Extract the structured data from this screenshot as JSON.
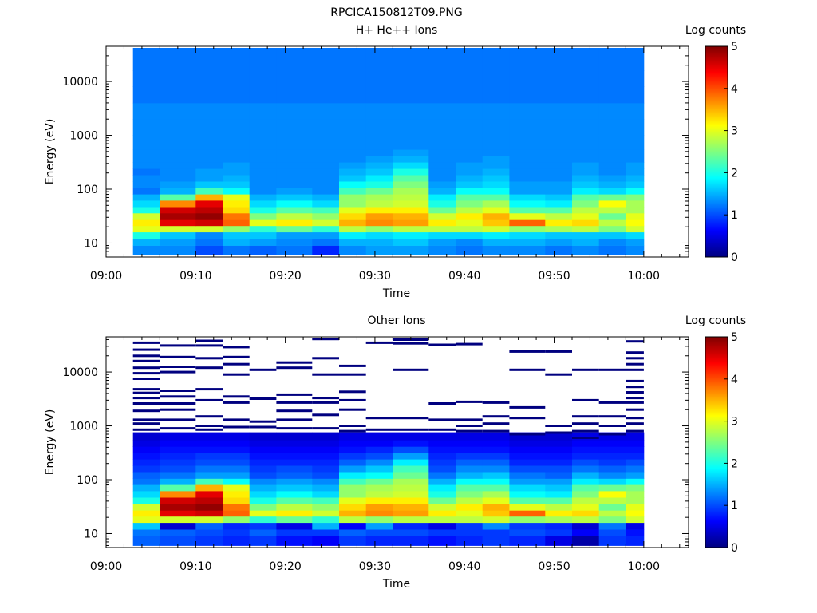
{
  "figure_title": "RPCICA150812T09.PNG",
  "colors": {
    "colormap": "jet",
    "colormap_stops": [
      "#00007f",
      "#0000ff",
      "#007fff",
      "#00ffff",
      "#7fff7f",
      "#ffff00",
      "#ff7f00",
      "#ff0000",
      "#7f0000"
    ],
    "background": "#ffffff",
    "empty_bin": "#ffffff"
  },
  "chart_data": [
    {
      "type": "heatmap",
      "title": "H+ He++ Ions",
      "xlabel": "Time",
      "ylabel": "Energy (eV)",
      "y_scale": "log",
      "ylim": [
        5.5,
        45000
      ],
      "x_ticks": [
        "09:00",
        "09:10",
        "09:20",
        "09:30",
        "09:40",
        "09:50",
        "10:00"
      ],
      "y_ticks": [
        "10",
        "100",
        "1000",
        "10000"
      ],
      "colorbar": {
        "label": "Log counts",
        "min": 0,
        "max": 5,
        "ticks": [
          "0",
          "1",
          "2",
          "3",
          "4",
          "5"
        ]
      },
      "time_bins_start": [
        "09:03",
        "09:06",
        "09:10",
        "09:13",
        "09:16",
        "09:19",
        "09:23",
        "09:26",
        "09:29",
        "09:32",
        "09:36",
        "09:39",
        "09:42",
        "09:45",
        "09:49",
        "09:52",
        "09:55",
        "09:58"
      ],
      "time_end": "10:00",
      "energy_edges_eV": [
        6,
        9,
        12,
        16,
        21,
        27,
        36,
        47,
        62,
        81,
        106,
        140,
        184,
        241,
        317,
        416,
        546,
        1000,
        2000,
        4000,
        8000,
        16000,
        42000
      ],
      "log_counts": [
        [
          1.3,
          1.3,
          1.0,
          1.2,
          1.1,
          1.2,
          0.8,
          1.3,
          1.4,
          1.4,
          1.3,
          1.2,
          1.3,
          1.3,
          1.2,
          1.3,
          1.2,
          1.3
        ],
        [
          1.5,
          1.4,
          1.2,
          1.5,
          1.4,
          1.3,
          1.2,
          1.5,
          1.5,
          1.6,
          1.4,
          1.3,
          1.5,
          1.5,
          1.4,
          1.5,
          1.3,
          1.4
        ],
        [
          2.0,
          1.6,
          1.3,
          1.6,
          1.6,
          1.4,
          1.4,
          1.8,
          1.7,
          1.8,
          1.7,
          1.7,
          1.8,
          1.7,
          1.6,
          1.6,
          1.6,
          1.7
        ],
        [
          3.0,
          2.9,
          2.9,
          2.6,
          2.1,
          2.4,
          2.1,
          2.8,
          2.6,
          2.8,
          2.8,
          2.8,
          2.9,
          2.6,
          2.7,
          2.8,
          2.5,
          2.9
        ],
        [
          3.2,
          4.5,
          4.6,
          3.9,
          3.0,
          3.2,
          2.9,
          3.5,
          3.7,
          3.6,
          3.2,
          3.0,
          3.4,
          3.9,
          3.2,
          3.3,
          2.8,
          3.1
        ],
        [
          2.9,
          4.8,
          4.9,
          3.8,
          2.5,
          2.8,
          2.6,
          3.3,
          3.6,
          3.5,
          2.9,
          3.2,
          3.5,
          3.0,
          2.8,
          3.0,
          2.4,
          3.0
        ],
        [
          2.0,
          4.6,
          4.7,
          3.3,
          2.0,
          2.3,
          2.2,
          3.0,
          3.2,
          3.2,
          2.4,
          2.8,
          3.0,
          2.3,
          2.3,
          2.8,
          2.8,
          2.7
        ],
        [
          1.7,
          3.7,
          4.5,
          3.2,
          1.7,
          1.9,
          1.7,
          2.6,
          2.8,
          2.9,
          2.0,
          2.5,
          2.7,
          1.9,
          1.8,
          2.5,
          3.1,
          2.7
        ],
        [
          1.5,
          2.3,
          3.5,
          3.0,
          1.5,
          1.6,
          1.5,
          2.6,
          2.7,
          2.8,
          1.8,
          2.3,
          2.3,
          1.7,
          1.6,
          2.3,
          2.4,
          2.5
        ],
        [
          1.2,
          1.5,
          2.2,
          1.9,
          1.3,
          1.4,
          1.3,
          2.2,
          2.4,
          2.7,
          1.5,
          1.9,
          1.9,
          1.4,
          1.4,
          1.8,
          1.7,
          1.9
        ],
        [
          1.3,
          1.4,
          1.6,
          1.6,
          1.3,
          1.3,
          1.3,
          1.9,
          2.0,
          2.5,
          1.4,
          1.6,
          1.7,
          1.4,
          1.4,
          1.6,
          1.5,
          1.6
        ],
        [
          1.3,
          1.3,
          1.4,
          1.5,
          1.3,
          1.3,
          1.3,
          1.6,
          1.8,
          2.3,
          1.3,
          1.5,
          1.6,
          1.3,
          1.3,
          1.5,
          1.4,
          1.5
        ],
        [
          1.2,
          1.3,
          1.4,
          1.4,
          1.3,
          1.3,
          1.3,
          1.5,
          1.6,
          2.0,
          1.3,
          1.4,
          1.5,
          1.3,
          1.3,
          1.4,
          1.3,
          1.4
        ],
        [
          1.3,
          1.3,
          1.3,
          1.4,
          1.3,
          1.3,
          1.3,
          1.4,
          1.5,
          1.7,
          1.3,
          1.4,
          1.4,
          1.3,
          1.3,
          1.4,
          1.3,
          1.4
        ],
        [
          1.3,
          1.3,
          1.3,
          1.3,
          1.3,
          1.3,
          1.3,
          1.3,
          1.4,
          1.5,
          1.3,
          1.3,
          1.4,
          1.3,
          1.3,
          1.3,
          1.3,
          1.3
        ],
        [
          1.3,
          1.3,
          1.3,
          1.3,
          1.3,
          1.3,
          1.3,
          1.3,
          1.3,
          1.4,
          1.3,
          1.3,
          1.3,
          1.3,
          1.3,
          1.3,
          1.3,
          1.3
        ],
        [
          1.3,
          1.3,
          1.3,
          1.3,
          1.3,
          1.3,
          1.3,
          1.3,
          1.3,
          1.3,
          1.3,
          1.3,
          1.3,
          1.3,
          1.3,
          1.3,
          1.3,
          1.3
        ],
        [
          1.3,
          1.3,
          1.3,
          1.3,
          1.3,
          1.3,
          1.3,
          1.3,
          1.3,
          1.3,
          1.3,
          1.3,
          1.3,
          1.3,
          1.3,
          1.3,
          1.3,
          1.3
        ],
        [
          1.3,
          1.3,
          1.3,
          1.3,
          1.3,
          1.3,
          1.3,
          1.3,
          1.3,
          1.3,
          1.3,
          1.3,
          1.3,
          1.3,
          1.3,
          1.3,
          1.3,
          1.3
        ],
        [
          1.2,
          1.2,
          1.2,
          1.2,
          1.2,
          1.2,
          1.2,
          1.2,
          1.2,
          1.2,
          1.2,
          1.2,
          1.2,
          1.2,
          1.2,
          1.2,
          1.2,
          1.2
        ],
        [
          1.2,
          1.2,
          1.2,
          1.2,
          1.2,
          1.2,
          1.2,
          1.2,
          1.2,
          1.2,
          1.2,
          1.2,
          1.2,
          1.2,
          1.2,
          1.2,
          1.2,
          1.2
        ],
        [
          1.2,
          1.2,
          1.2,
          1.2,
          1.2,
          1.2,
          1.2,
          1.2,
          1.2,
          1.2,
          1.2,
          1.2,
          1.2,
          1.2,
          1.2,
          1.2,
          1.2,
          1.2
        ]
      ]
    },
    {
      "type": "heatmap",
      "title": "Other Ions",
      "xlabel": "Time",
      "ylabel": "Energy (eV)",
      "y_scale": "log",
      "ylim": [
        5.5,
        45000
      ],
      "x_ticks": [
        "09:00",
        "09:10",
        "09:20",
        "09:30",
        "09:40",
        "09:50",
        "10:00"
      ],
      "y_ticks": [
        "10",
        "100",
        "1000",
        "10000"
      ],
      "colorbar": {
        "label": "Log counts",
        "min": 0,
        "max": 5,
        "ticks": [
          "0",
          "1",
          "2",
          "3",
          "4",
          "5"
        ]
      },
      "time_bins_start": [
        "09:03",
        "09:06",
        "09:10",
        "09:13",
        "09:16",
        "09:19",
        "09:23",
        "09:26",
        "09:29",
        "09:32",
        "09:36",
        "09:39",
        "09:42",
        "09:45",
        "09:49",
        "09:52",
        "09:55",
        "09:58"
      ],
      "time_end": "10:00",
      "energy_edges_eV": [
        6,
        9,
        12,
        16,
        21,
        27,
        36,
        47,
        62,
        81,
        106,
        140,
        184,
        241,
        317,
        416,
        546,
        760
      ],
      "log_counts": [
        [
          1.1,
          1.0,
          0.9,
          0.8,
          0.9,
          0.7,
          0.6,
          0.9,
          0.8,
          0.8,
          0.7,
          0.8,
          0.9,
          0.8,
          0.5,
          0.2,
          0.9,
          0.8
        ],
        [
          1.2,
          1.1,
          1.0,
          0.9,
          1.1,
          0.9,
          0.9,
          1.1,
          1.0,
          1.0,
          0.9,
          0.9,
          0.9,
          1.0,
          0.9,
          0.6,
          1.0,
          0.7
        ],
        [
          1.6,
          0.4,
          1.1,
          0.8,
          0.9,
          0.5,
          1.5,
          0.6,
          1.4,
          0.8,
          0.5,
          0.9,
          1.3,
          0.9,
          0.8,
          0.4,
          1.2,
          0.5
        ],
        [
          3.0,
          2.9,
          2.9,
          2.6,
          2.1,
          2.4,
          2.1,
          2.8,
          2.6,
          2.8,
          2.8,
          2.8,
          2.9,
          2.6,
          2.7,
          2.8,
          2.5,
          2.9
        ],
        [
          3.2,
          4.5,
          4.6,
          3.9,
          3.0,
          3.2,
          2.9,
          3.5,
          3.7,
          3.6,
          3.2,
          3.0,
          3.4,
          3.9,
          3.2,
          3.3,
          2.8,
          3.1
        ],
        [
          2.9,
          4.8,
          4.9,
          3.8,
          2.5,
          2.8,
          2.6,
          3.3,
          3.6,
          3.5,
          2.9,
          3.2,
          3.5,
          3.0,
          2.8,
          3.0,
          2.4,
          3.0
        ],
        [
          2.0,
          4.6,
          4.7,
          3.3,
          2.0,
          2.3,
          2.2,
          3.0,
          3.2,
          3.2,
          2.4,
          2.8,
          3.0,
          2.3,
          2.3,
          2.8,
          2.8,
          2.7
        ],
        [
          1.7,
          3.7,
          4.5,
          3.2,
          1.7,
          1.9,
          1.7,
          2.6,
          2.8,
          2.9,
          2.0,
          2.5,
          2.7,
          1.9,
          1.8,
          2.5,
          3.1,
          2.7
        ],
        [
          1.5,
          2.3,
          3.5,
          3.0,
          1.5,
          1.6,
          1.5,
          2.6,
          2.7,
          2.8,
          1.8,
          2.3,
          2.3,
          1.7,
          1.6,
          2.3,
          2.4,
          2.5
        ],
        [
          1.2,
          1.5,
          2.2,
          1.9,
          1.3,
          1.4,
          1.3,
          2.2,
          2.4,
          2.7,
          1.5,
          1.9,
          1.9,
          1.4,
          1.4,
          1.8,
          1.7,
          1.9
        ],
        [
          1.1,
          1.2,
          1.4,
          1.4,
          1.0,
          1.1,
          1.0,
          1.8,
          1.9,
          2.4,
          1.2,
          1.5,
          1.6,
          1.2,
          1.1,
          1.5,
          1.3,
          1.4
        ],
        [
          0.9,
          1.0,
          1.2,
          1.2,
          0.9,
          1.0,
          0.9,
          1.4,
          1.6,
          2.2,
          1.0,
          1.3,
          1.3,
          1.0,
          1.0,
          1.2,
          1.1,
          1.2
        ],
        [
          0.8,
          0.9,
          1.0,
          1.0,
          0.8,
          0.8,
          0.8,
          1.1,
          1.3,
          1.8,
          0.9,
          1.1,
          1.1,
          0.8,
          0.8,
          1.0,
          0.9,
          1.0
        ],
        [
          0.7,
          0.8,
          0.9,
          0.9,
          0.7,
          0.7,
          0.7,
          0.9,
          1.0,
          1.4,
          0.8,
          0.9,
          0.9,
          0.7,
          0.7,
          0.8,
          0.8,
          0.8
        ],
        [
          0.6,
          0.7,
          0.7,
          0.7,
          0.6,
          0.6,
          0.6,
          0.7,
          0.8,
          1.0,
          0.7,
          0.7,
          0.7,
          0.6,
          0.6,
          0.7,
          0.7,
          0.7
        ],
        [
          0.5,
          0.6,
          0.6,
          0.6,
          0.5,
          0.5,
          0.5,
          0.6,
          0.6,
          0.7,
          0.6,
          0.6,
          0.6,
          0.5,
          0.5,
          0.6,
          0.6,
          0.6
        ],
        [
          0.4,
          0.5,
          0.5,
          0.5,
          0.4,
          0.4,
          0.4,
          0.5,
          0.5,
          0.5,
          0.5,
          0.5,
          0.5,
          0.4,
          0.4,
          0.5,
          0.5,
          0.5
        ]
      ],
      "sparse_lines": [
        {
          "t": 0,
          "E": [
            850,
            1100,
            1300,
            1900,
            2600,
            3300,
            4100,
            4800,
            7500,
            9500,
            12000,
            16000,
            20000,
            26000,
            35000
          ]
        },
        {
          "t": 1,
          "E": [
            900,
            1300,
            2000,
            2600,
            3500,
            4500,
            10000,
            12500,
            19000,
            31000
          ]
        },
        {
          "t": 2,
          "E": [
            850,
            1000,
            1500,
            3000,
            4800,
            12000,
            18000,
            31000,
            38000
          ]
        },
        {
          "t": 3,
          "E": [
            950,
            1300,
            2700,
            3500,
            9000,
            14000,
            19000,
            29000
          ]
        },
        {
          "t": 4,
          "E": [
            950,
            1200,
            3200,
            11000
          ]
        },
        {
          "t": 5,
          "E": [
            900,
            1300,
            1900,
            2700,
            3800,
            12000,
            15000
          ]
        },
        {
          "t": 6,
          "E": [
            900,
            1600,
            2700,
            3300,
            9000,
            18000,
            41000
          ]
        },
        {
          "t": 7,
          "E": [
            800,
            1000,
            2000,
            3000,
            4300,
            9000,
            13000
          ]
        },
        {
          "t": 8,
          "E": [
            850,
            1400,
            35000
          ]
        },
        {
          "t": 9,
          "E": [
            850,
            1400,
            11000,
            34000,
            40000
          ]
        },
        {
          "t": 10,
          "E": [
            850,
            1300,
            2600,
            32000
          ]
        },
        {
          "t": 11,
          "E": [
            800,
            1000,
            1300,
            2800,
            33000
          ]
        },
        {
          "t": 12,
          "E": [
            800,
            1100,
            1500,
            2700
          ]
        },
        {
          "t": 13,
          "E": [
            700,
            1400,
            2200,
            11000,
            24000
          ]
        },
        {
          "t": 14,
          "E": [
            750,
            1000,
            9000,
            24000
          ]
        },
        {
          "t": 15,
          "E": [
            600,
            800,
            1100,
            1500,
            3000,
            11000
          ]
        },
        {
          "t": 16,
          "E": [
            700,
            1000,
            1500,
            2700,
            11000
          ]
        },
        {
          "t": 17,
          "E": [
            800,
            1100,
            1400,
            2000,
            2700,
            3300,
            4200,
            5300,
            6800,
            11000,
            14000,
            18000,
            23000,
            37000
          ]
        }
      ]
    }
  ]
}
